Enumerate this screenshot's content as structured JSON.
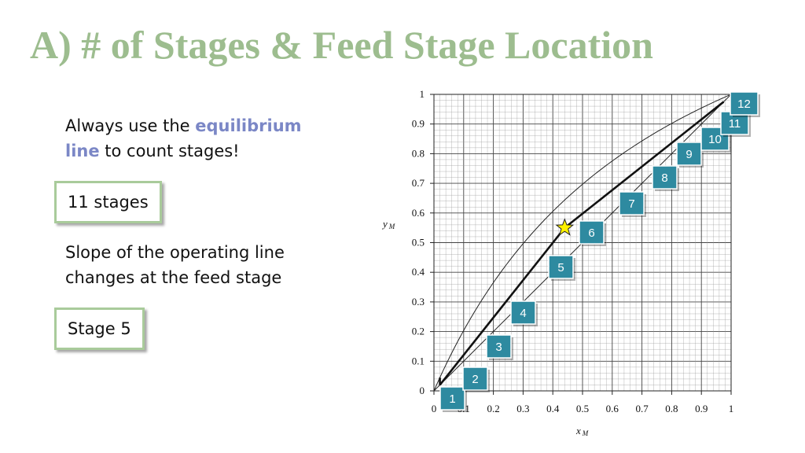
{
  "slide": {
    "title": "A) # of Stages & Feed Stage Location",
    "note_plain": "Always use the ",
    "note_accent1": "equilibrium",
    "note_accent2": "line",
    "note_rest": " to count stages!",
    "answer1": "11 stages",
    "slope_line1": "Slope of the operating line",
    "slope_line2": "changes at the feed stage",
    "answer2": "Stage 5",
    "accent_color": "#7b87c6",
    "title_color": "#9dbd8f",
    "box_color": "#2e8aa0"
  },
  "chart_data": {
    "type": "mccabe-thiele",
    "xlabel": "x",
    "xlabel_sub": "M",
    "ylabel": "y",
    "ylabel_sub": "M",
    "xlim": [
      0,
      1
    ],
    "ylim": [
      0,
      1
    ],
    "x_ticks": [
      "0",
      "0.1",
      "0.2",
      "0.3",
      "0.4",
      "0.5",
      "0.6",
      "0.7",
      "0.8",
      "0.9",
      "1"
    ],
    "y_ticks": [
      "0",
      "0.1",
      "0.2",
      "0.3",
      "0.4",
      "0.5",
      "0.6",
      "0.7",
      "0.8",
      "0.9",
      "1"
    ],
    "grid": true,
    "feed_point": {
      "x": 0.44,
      "y": 0.55,
      "marker": "star"
    },
    "equilibrium_alpha": 2.3,
    "operating_lines": [
      {
        "name": "stripping",
        "points": [
          [
            0.02,
            0.02
          ],
          [
            0.44,
            0.55
          ]
        ]
      },
      {
        "name": "rectifying",
        "points": [
          [
            0.44,
            0.55
          ],
          [
            0.975,
            0.975
          ]
        ]
      }
    ],
    "stage_labels": [
      "1",
      "2",
      "3",
      "4",
      "5",
      "6",
      "7",
      "8",
      "9",
      "10",
      "11",
      "12"
    ]
  }
}
